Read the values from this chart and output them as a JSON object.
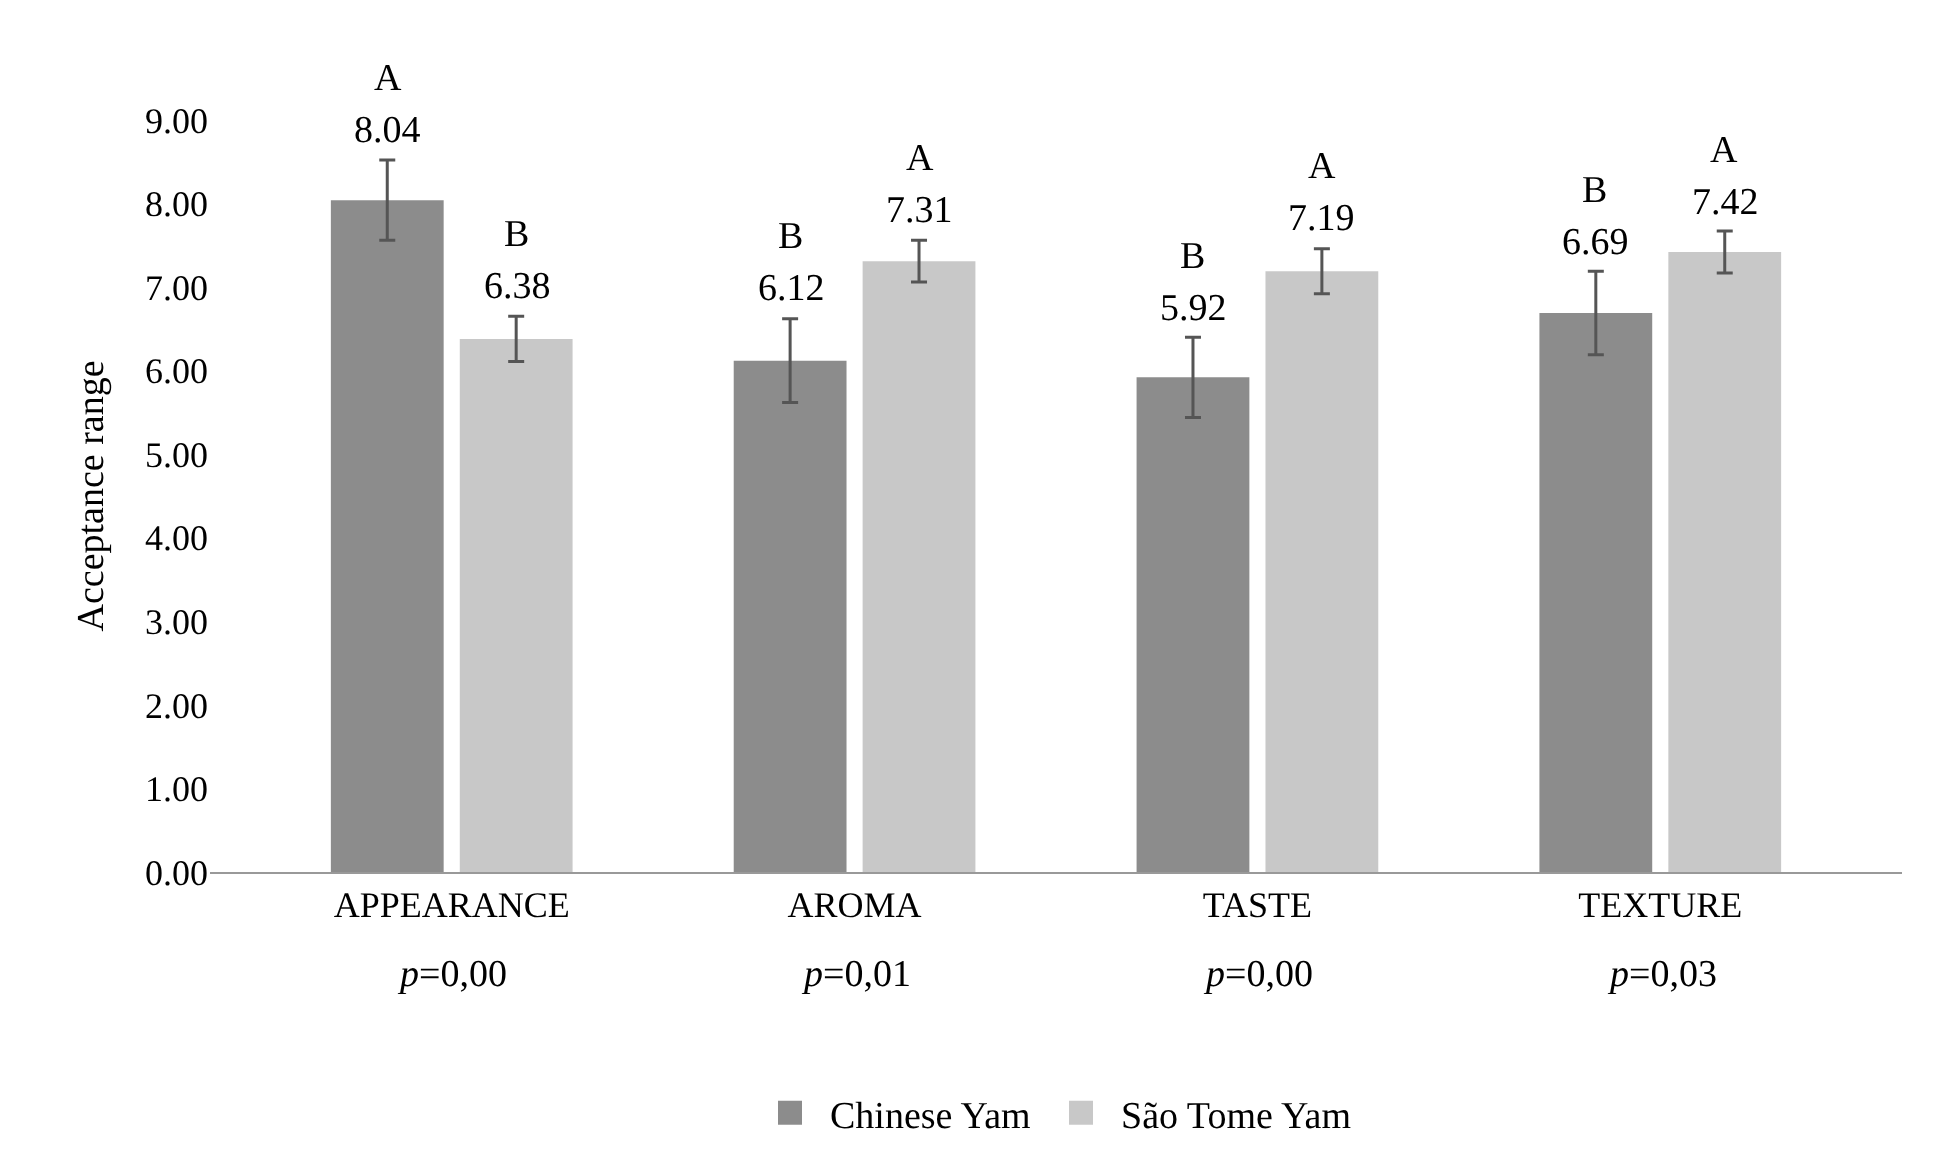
{
  "chart_data": {
    "type": "bar",
    "ylabel": "Acceptance range",
    "categories": [
      "APPEARANCE",
      "AROMA",
      "TASTE",
      "TEXTURE"
    ],
    "series": [
      {
        "name": "Chinese Yam",
        "color": "#8c8c8c",
        "values": [
          8.04,
          6.12,
          5.92,
          6.69
        ],
        "errors": [
          0.48,
          0.5,
          0.48,
          0.5
        ]
      },
      {
        "name": "São Tome Yam",
        "color": "#c8c8c8",
        "values": [
          6.38,
          7.31,
          7.19,
          7.42
        ],
        "errors": [
          0.27,
          0.25,
          0.27,
          0.25
        ]
      }
    ],
    "ylim": [
      0,
      9
    ],
    "yticks": [
      {
        "value": 0,
        "label": "0.00"
      },
      {
        "value": 1,
        "label": "1.00"
      },
      {
        "value": 2,
        "label": "2.00"
      },
      {
        "value": 3,
        "label": "3.00"
      },
      {
        "value": 4,
        "label": "4.00"
      },
      {
        "value": 5,
        "label": "5.00"
      },
      {
        "value": 6,
        "label": "6.00"
      },
      {
        "value": 7,
        "label": "7.00"
      },
      {
        "value": 8,
        "label": "8.00"
      },
      {
        "value": 9,
        "label": "9.00"
      }
    ],
    "data_labels": true,
    "legend": "bottom",
    "annotations": [
      "A",
      "B",
      "B",
      "A",
      "B",
      "A",
      "B",
      "A",
      "p=0,00",
      "p=0,01",
      "p=0,00",
      "p=0,03"
    ]
  }
}
